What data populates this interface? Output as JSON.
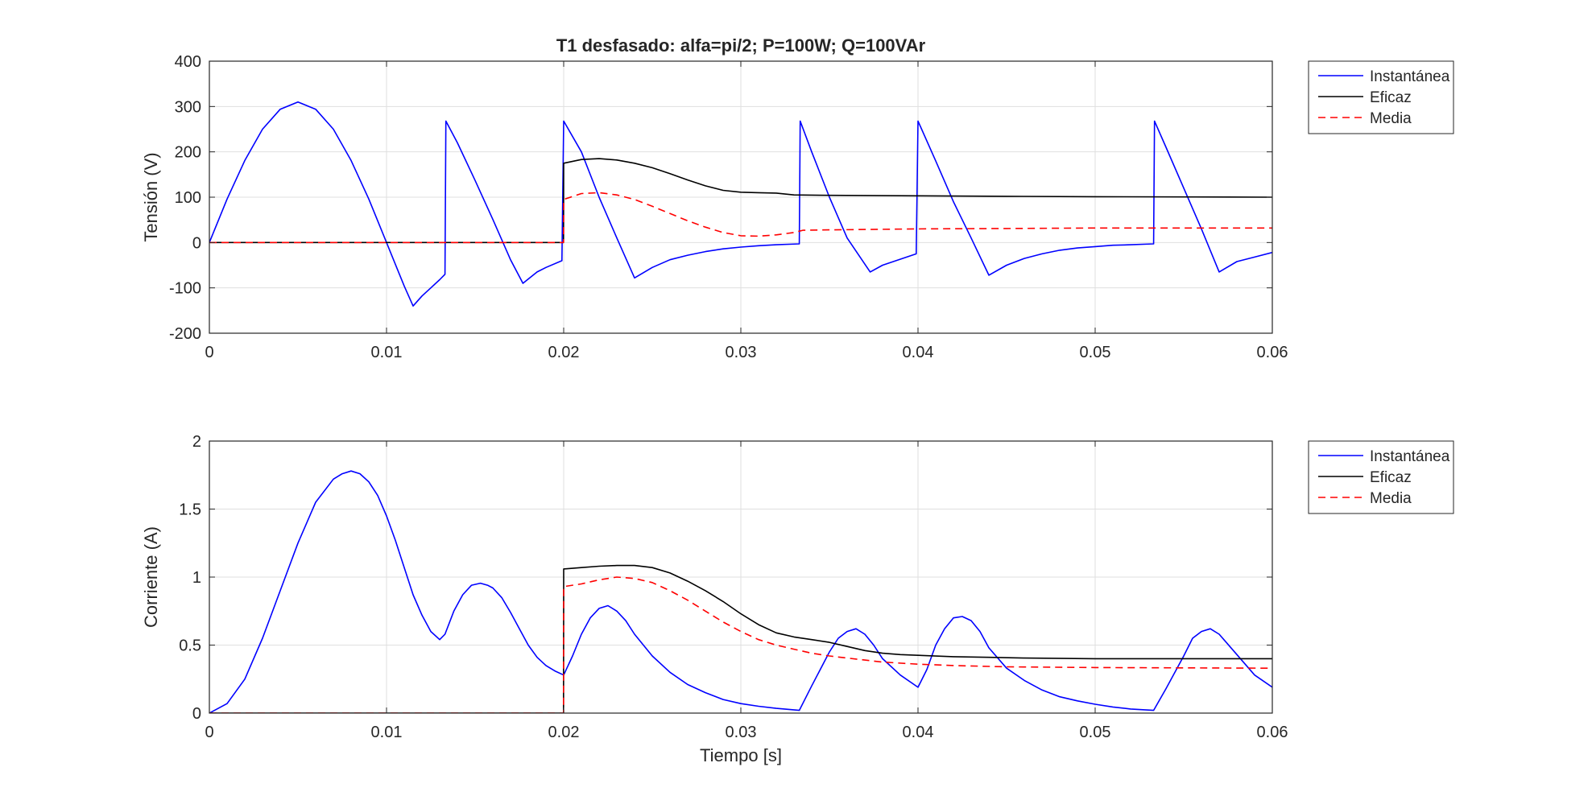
{
  "chart_data": [
    {
      "type": "line",
      "title": "T1 desfasado: alfa=pi/2; P=100W; Q=100VAr",
      "xlabel": "",
      "ylabel": "Tensión (V)",
      "xlim": [
        0,
        0.06
      ],
      "ylim": [
        -200,
        400
      ],
      "xticks": [
        0,
        0.01,
        0.02,
        0.03,
        0.04,
        0.05,
        0.06
      ],
      "xtick_labels": [
        "0",
        "0.01",
        "0.02",
        "0.03",
        "0.04",
        "0.05",
        "0.06"
      ],
      "yticks": [
        -200,
        -100,
        0,
        100,
        200,
        300,
        400
      ],
      "ytick_labels": [
        "-200",
        "-100",
        "0",
        "100",
        "200",
        "300",
        "400"
      ],
      "grid": true,
      "legend_position": "outside-top-right",
      "series": [
        {
          "name": "Instantánea",
          "color": "#0000ff",
          "dash": "solid",
          "x": [
            0,
            0.001,
            0.002,
            0.003,
            0.004,
            0.005,
            0.006,
            0.007,
            0.008,
            0.009,
            0.0095,
            0.01,
            0.0105,
            0.011,
            0.0115,
            0.012,
            0.0125,
            0.013,
            0.0133,
            0.01335,
            0.014,
            0.015,
            0.016,
            0.017,
            0.0177,
            0.0185,
            0.019,
            0.0199,
            0.02,
            0.021,
            0.022,
            0.023,
            0.024,
            0.025,
            0.026,
            0.027,
            0.028,
            0.029,
            0.03,
            0.031,
            0.032,
            0.0333,
            0.03335,
            0.034,
            0.035,
            0.036,
            0.0373,
            0.038,
            0.0399,
            0.04,
            0.041,
            0.042,
            0.043,
            0.044,
            0.045,
            0.046,
            0.047,
            0.048,
            0.049,
            0.05,
            0.051,
            0.052,
            0.0533,
            0.05335,
            0.054,
            0.055,
            0.056,
            0.057,
            0.058,
            0.059,
            0.06
          ],
          "y": [
            0,
            96,
            181,
            250,
            294,
            310,
            294,
            250,
            181,
            96,
            48,
            0,
            -48,
            -96,
            -140,
            -118,
            -100,
            -82,
            -70,
            268,
            220,
            137,
            51,
            -38,
            -90,
            -65,
            -55,
            -40,
            268,
            200,
            100,
            10,
            -78,
            -55,
            -38,
            -28,
            -20,
            -14,
            -10,
            -7,
            -5,
            -3,
            268,
            200,
            100,
            10,
            -65,
            -50,
            -25,
            268,
            180,
            90,
            10,
            -72,
            -50,
            -35,
            -25,
            -17,
            -12,
            -9,
            -6,
            -5,
            -3,
            268,
            210,
            120,
            30,
            -65,
            -42,
            -32,
            -22
          ]
        },
        {
          "name": "Eficaz",
          "color": "#000000",
          "dash": "solid",
          "x": [
            0,
            0.01999,
            0.02,
            0.021,
            0.022,
            0.023,
            0.024,
            0.025,
            0.026,
            0.027,
            0.028,
            0.029,
            0.03,
            0.031,
            0.032,
            0.033,
            0.035,
            0.04,
            0.045,
            0.05,
            0.06
          ],
          "y": [
            0,
            0,
            175,
            183,
            185,
            182,
            175,
            165,
            152,
            138,
            125,
            115,
            111,
            110,
            109,
            105,
            104,
            103,
            102,
            101,
            100
          ]
        },
        {
          "name": "Media",
          "color": "#ff0000",
          "dash": "dashed",
          "x": [
            0,
            0.01999,
            0.02,
            0.021,
            0.022,
            0.023,
            0.024,
            0.025,
            0.026,
            0.027,
            0.028,
            0.029,
            0.03,
            0.031,
            0.032,
            0.033,
            0.0335,
            0.035,
            0.04,
            0.045,
            0.05,
            0.06
          ],
          "y": [
            0,
            0,
            95,
            108,
            110,
            105,
            95,
            80,
            64,
            48,
            34,
            22,
            15,
            14,
            17,
            22,
            27,
            28,
            30,
            31,
            32,
            32
          ]
        }
      ]
    },
    {
      "type": "line",
      "title": "",
      "xlabel": "Tiempo [s]",
      "ylabel": "Corriente (A)",
      "xlim": [
        0,
        0.06
      ],
      "ylim": [
        0,
        2
      ],
      "xticks": [
        0,
        0.01,
        0.02,
        0.03,
        0.04,
        0.05,
        0.06
      ],
      "xtick_labels": [
        "0",
        "0.01",
        "0.02",
        "0.03",
        "0.04",
        "0.05",
        "0.06"
      ],
      "yticks": [
        0,
        0.5,
        1,
        1.5,
        2
      ],
      "ytick_labels": [
        "0",
        "0.5",
        "1",
        "1.5",
        "2"
      ],
      "grid": true,
      "legend_position": "outside-top-right",
      "series": [
        {
          "name": "Instantánea",
          "color": "#0000ff",
          "dash": "solid",
          "x": [
            0,
            0.001,
            0.002,
            0.003,
            0.004,
            0.005,
            0.006,
            0.007,
            0.0075,
            0.008,
            0.0085,
            0.009,
            0.0095,
            0.01,
            0.0105,
            0.011,
            0.0115,
            0.012,
            0.0125,
            0.013,
            0.0133,
            0.0138,
            0.0143,
            0.0148,
            0.0153,
            0.0157,
            0.016,
            0.0165,
            0.017,
            0.0175,
            0.018,
            0.0185,
            0.019,
            0.0195,
            0.02,
            0.0205,
            0.021,
            0.0215,
            0.022,
            0.0225,
            0.023,
            0.0235,
            0.024,
            0.025,
            0.026,
            0.027,
            0.028,
            0.029,
            0.03,
            0.031,
            0.032,
            0.0333,
            0.034,
            0.035,
            0.0355,
            0.036,
            0.0365,
            0.037,
            0.0375,
            0.038,
            0.039,
            0.04,
            0.0405,
            0.041,
            0.0415,
            0.042,
            0.0425,
            0.043,
            0.0435,
            0.044,
            0.045,
            0.046,
            0.047,
            0.048,
            0.049,
            0.05,
            0.051,
            0.052,
            0.0533,
            0.054,
            0.055,
            0.0555,
            0.056,
            0.0565,
            0.057,
            0.058,
            0.059,
            0.06
          ],
          "y": [
            0,
            0.07,
            0.25,
            0.55,
            0.9,
            1.25,
            1.55,
            1.72,
            1.76,
            1.78,
            1.76,
            1.7,
            1.6,
            1.45,
            1.27,
            1.07,
            0.87,
            0.72,
            0.6,
            0.54,
            0.58,
            0.75,
            0.87,
            0.94,
            0.955,
            0.94,
            0.92,
            0.85,
            0.74,
            0.62,
            0.5,
            0.41,
            0.35,
            0.31,
            0.28,
            0.42,
            0.58,
            0.7,
            0.77,
            0.79,
            0.75,
            0.68,
            0.58,
            0.42,
            0.3,
            0.21,
            0.15,
            0.1,
            0.07,
            0.05,
            0.035,
            0.02,
            0.2,
            0.45,
            0.55,
            0.6,
            0.62,
            0.58,
            0.5,
            0.4,
            0.28,
            0.19,
            0.32,
            0.5,
            0.62,
            0.7,
            0.71,
            0.68,
            0.6,
            0.48,
            0.33,
            0.24,
            0.17,
            0.12,
            0.09,
            0.065,
            0.045,
            0.03,
            0.02,
            0.18,
            0.42,
            0.55,
            0.6,
            0.62,
            0.58,
            0.43,
            0.28,
            0.19
          ]
        },
        {
          "name": "Eficaz",
          "color": "#000000",
          "dash": "solid",
          "x": [
            0,
            0.01999,
            0.02,
            0.021,
            0.022,
            0.023,
            0.024,
            0.025,
            0.026,
            0.027,
            0.028,
            0.029,
            0.03,
            0.031,
            0.032,
            0.033,
            0.034,
            0.035,
            0.036,
            0.037,
            0.038,
            0.039,
            0.04,
            0.042,
            0.044,
            0.046,
            0.05,
            0.06
          ],
          "y": [
            0,
            0,
            1.06,
            1.07,
            1.08,
            1.085,
            1.085,
            1.07,
            1.03,
            0.97,
            0.9,
            0.82,
            0.73,
            0.65,
            0.59,
            0.56,
            0.54,
            0.52,
            0.49,
            0.46,
            0.44,
            0.43,
            0.425,
            0.415,
            0.41,
            0.405,
            0.4,
            0.4
          ]
        },
        {
          "name": "Media",
          "color": "#ff0000",
          "dash": "dashed",
          "x": [
            0,
            0.01999,
            0.02,
            0.021,
            0.022,
            0.023,
            0.024,
            0.025,
            0.026,
            0.027,
            0.028,
            0.029,
            0.03,
            0.031,
            0.032,
            0.033,
            0.034,
            0.035,
            0.036,
            0.037,
            0.038,
            0.04,
            0.042,
            0.045,
            0.05,
            0.06
          ],
          "y": [
            0,
            0,
            0.93,
            0.95,
            0.98,
            1.0,
            0.99,
            0.96,
            0.9,
            0.83,
            0.75,
            0.67,
            0.6,
            0.54,
            0.5,
            0.47,
            0.44,
            0.42,
            0.405,
            0.39,
            0.375,
            0.36,
            0.35,
            0.34,
            0.335,
            0.33
          ]
        }
      ]
    }
  ]
}
